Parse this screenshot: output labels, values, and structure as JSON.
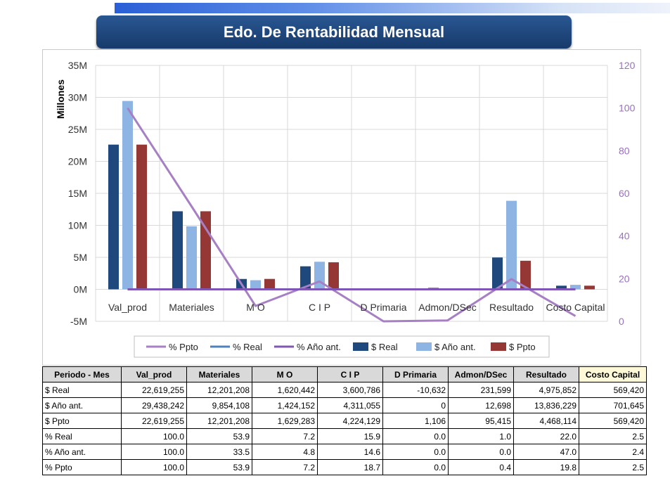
{
  "title": "Edo. De Rentabilidad Mensual",
  "colors": {
    "real": "#1f497d",
    "anio_ant": "#8eb4e3",
    "ppto": "#953735",
    "pct_ppto": "#a67fc4",
    "pct_real": "#4f81bd",
    "pct_anio_ant": "#7f56b5",
    "right_axis": "#9b6fc2"
  },
  "chart_data": {
    "type": "bar",
    "ylabel": "Millones",
    "ylim": [
      -5,
      35
    ],
    "y_ticks": [
      "35M",
      "30M",
      "25M",
      "20M",
      "15M",
      "10M",
      "5M",
      "0M",
      "-5M"
    ],
    "y2lim": [
      0,
      120
    ],
    "y2_ticks": [
      "120",
      "100",
      "80",
      "60",
      "40",
      "20",
      "0"
    ],
    "categories": [
      "Val_prod",
      "Materiales",
      "M O",
      "C I P",
      "D Primaria",
      "Admon/DSec",
      "Resultado",
      "Costo Capital"
    ],
    "series": [
      {
        "name": "$ Real",
        "axis": "left",
        "type": "bar",
        "values": [
          22.619255,
          12.201208,
          1.620442,
          3.600786,
          -0.010632,
          0.231599,
          4.975852,
          0.56942
        ]
      },
      {
        "name": "$ Año ant.",
        "axis": "left",
        "type": "bar",
        "values": [
          29.438242,
          9.854108,
          1.424152,
          4.311055,
          0,
          0.012698,
          13.836229,
          0.701645
        ]
      },
      {
        "name": "$ Ppto",
        "axis": "left",
        "type": "bar",
        "values": [
          22.619255,
          12.201208,
          1.629283,
          4.224129,
          0.001106,
          0.095415,
          4.468114,
          0.56942
        ]
      },
      {
        "name": "% Ppto",
        "axis": "right",
        "type": "line",
        "values": [
          100.0,
          53.9,
          7.2,
          18.7,
          0.0,
          0.4,
          19.8,
          2.5
        ]
      },
      {
        "name": "% Real",
        "axis": "left",
        "type": "line",
        "values": [
          0.0001,
          5.39e-05,
          7.2e-06,
          1.59e-05,
          0.0,
          1e-06,
          2.2e-05,
          2.5e-06
        ]
      },
      {
        "name": "% Año ant.",
        "axis": "left",
        "type": "line",
        "values": [
          0.0001,
          3.35e-05,
          4.8e-06,
          1.46e-05,
          0.0,
          0.0,
          4.7e-05,
          2.4e-06
        ]
      }
    ],
    "legend": [
      "% Ppto",
      "% Real",
      "% Año ant.",
      "$ Real",
      "$ Año ant.",
      "$ Ppto"
    ],
    "legend_position": "bottom",
    "grid": true
  },
  "table": {
    "headers": [
      "Periodo - Mes",
      "Val_prod",
      "Materiales",
      "M O",
      "C I P",
      "D Primaria",
      "Admon/DSec",
      "Resultado",
      "Costo Capital"
    ],
    "rows": [
      [
        "$ Real",
        "22,619,255",
        "12,201,208",
        "1,620,442",
        "3,600,786",
        "-10,632",
        "231,599",
        "4,975,852",
        "569,420"
      ],
      [
        "$ Año ant.",
        "29,438,242",
        "9,854,108",
        "1,424,152",
        "4,311,055",
        "0",
        "12,698",
        "13,836,229",
        "701,645"
      ],
      [
        "$ Ppto",
        "22,619,255",
        "12,201,208",
        "1,629,283",
        "4,224,129",
        "1,106",
        "95,415",
        "4,468,114",
        "569,420"
      ],
      [
        "% Real",
        "100.0",
        "53.9",
        "7.2",
        "15.9",
        "0.0",
        "1.0",
        "22.0",
        "2.5"
      ],
      [
        "% Año ant.",
        "100.0",
        "33.5",
        "4.8",
        "14.6",
        "0.0",
        "0.0",
        "47.0",
        "2.4"
      ],
      [
        "% Ppto",
        "100.0",
        "53.9",
        "7.2",
        "18.7",
        "0.0",
        "0.4",
        "19.8",
        "2.5"
      ]
    ]
  }
}
